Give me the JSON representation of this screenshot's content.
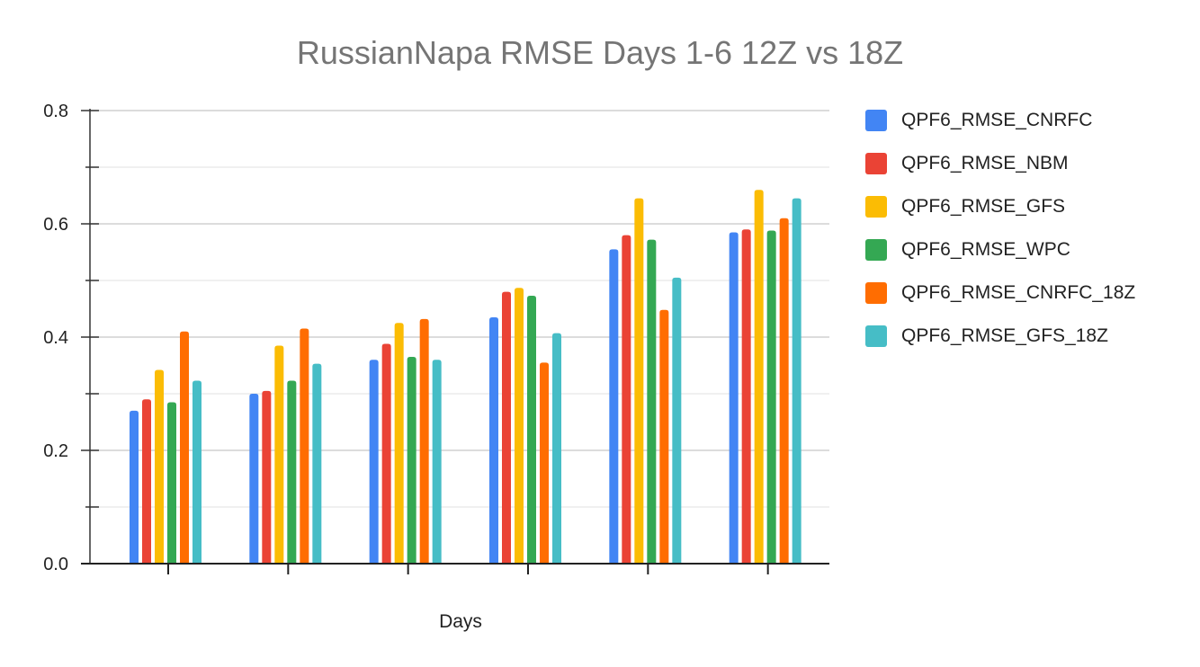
{
  "chart_data": {
    "type": "bar",
    "title": "RussianNapa RMSE Days 1-6 12Z vs 18Z",
    "xlabel": "Days",
    "ylabel": "",
    "ylim": [
      0,
      0.8
    ],
    "yticks": [
      "0.0",
      "0.2",
      "0.4",
      "0.6",
      "0.8"
    ],
    "categories": [
      "",
      "",
      "",
      "",
      "",
      ""
    ],
    "legend_position": "right",
    "grid": true,
    "series": [
      {
        "name": "QPF6_RMSE_CNRFC",
        "color": "#4285F4",
        "values": [
          0.27,
          0.3,
          0.36,
          0.435,
          0.555,
          0.585
        ]
      },
      {
        "name": "QPF6_RMSE_NBM",
        "color": "#EA4335",
        "values": [
          0.29,
          0.305,
          0.388,
          0.48,
          0.58,
          0.59
        ]
      },
      {
        "name": "QPF6_RMSE_GFS",
        "color": "#FBBC04",
        "values": [
          0.342,
          0.385,
          0.425,
          0.487,
          0.645,
          0.66
        ]
      },
      {
        "name": "QPF6_RMSE_WPC",
        "color": "#34A853",
        "values": [
          0.285,
          0.323,
          0.365,
          0.473,
          0.572,
          0.588
        ]
      },
      {
        "name": "QPF6_RMSE_CNRFC_18Z",
        "color": "#FF6D01",
        "values": [
          0.41,
          0.415,
          0.432,
          0.355,
          0.448,
          0.61
        ]
      },
      {
        "name": "QPF6_RMSE_GFS_18Z",
        "color": "#46BDC6",
        "values": [
          0.323,
          0.353,
          0.36,
          0.407,
          0.505,
          0.645
        ]
      }
    ]
  }
}
